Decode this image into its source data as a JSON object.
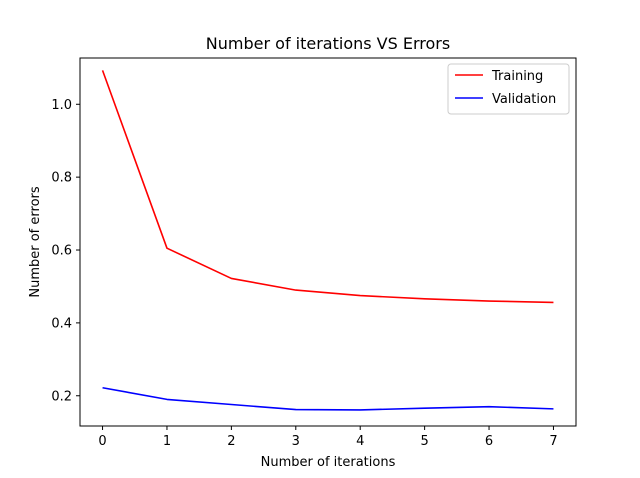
{
  "chart_data": {
    "type": "line",
    "title": "Number of iterations VS Errors",
    "xlabel": "Number of iterations",
    "ylabel": "Number of errors",
    "x": [
      0,
      1,
      2,
      3,
      4,
      5,
      6,
      7
    ],
    "xlim": [
      -0.35,
      7.35
    ],
    "ylim": [
      0.117,
      1.127
    ],
    "xticks": [
      0,
      1,
      2,
      3,
      4,
      5,
      6,
      7
    ],
    "xtick_labels": [
      "0",
      "1",
      "2",
      "3",
      "4",
      "5",
      "6",
      "7"
    ],
    "yticks": [
      0.2,
      0.4,
      0.6,
      0.8,
      1.0
    ],
    "ytick_labels": [
      "0.2",
      "0.4",
      "0.6",
      "0.8",
      "1.0"
    ],
    "grid": false,
    "legend_position": "top-right",
    "series": [
      {
        "name": "Training",
        "color": "#ff0000",
        "values": [
          1.093,
          0.605,
          0.522,
          0.49,
          0.475,
          0.466,
          0.46,
          0.456
        ]
      },
      {
        "name": "Validation",
        "color": "#0000ff",
        "values": [
          0.222,
          0.19,
          0.176,
          0.162,
          0.161,
          0.166,
          0.17,
          0.164
        ]
      }
    ]
  }
}
